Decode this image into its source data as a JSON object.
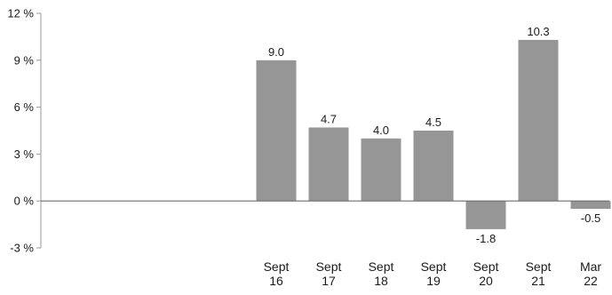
{
  "chart_data": {
    "type": "bar",
    "categories": [
      [
        "",
        ""
      ],
      [
        "",
        ""
      ],
      [
        "",
        ""
      ],
      [
        "",
        ""
      ],
      [
        "Sept",
        "16"
      ],
      [
        "Sept",
        "17"
      ],
      [
        "Sept",
        "18"
      ],
      [
        "Sept",
        "19"
      ],
      [
        "Sept",
        "20"
      ],
      [
        "Sept",
        "21"
      ],
      [
        "Mar",
        "22"
      ]
    ],
    "values": [
      null,
      null,
      null,
      null,
      9.0,
      4.7,
      4.0,
      4.5,
      -1.8,
      10.3,
      -0.5
    ],
    "value_labels": [
      "",
      "",
      "",
      "",
      "9.0",
      "4.7",
      "4.0",
      "4.5",
      "-1.8",
      "10.3",
      "-0.5"
    ],
    "yticks": [
      12,
      9,
      6,
      3,
      0,
      -3
    ],
    "ytick_labels": [
      "12 %",
      "9 %",
      "6 %",
      "3 %",
      "0 %",
      "-3 %"
    ],
    "ylim": [
      -3,
      12
    ],
    "grid": false,
    "colors": {
      "bar": "#969696",
      "axis": "#9a9a9a",
      "zero_line": "#6e6e6e",
      "text": "#1a1a1a"
    }
  }
}
